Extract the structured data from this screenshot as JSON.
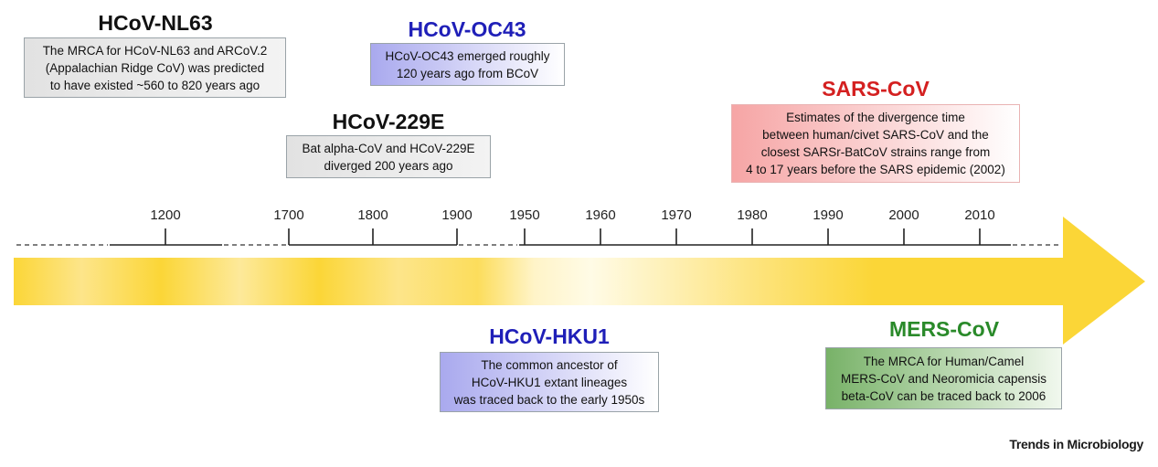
{
  "colors": {
    "black_title": "#111111",
    "blue_title": "#1f1fb8",
    "red_title": "#d42020",
    "green_title": "#2a8a2a",
    "arrow_yellow": "#fbd637"
  },
  "events": [
    {
      "key": "nl63",
      "title": "HCoV-NL63",
      "title_color": "#111111",
      "text": "The MRCA for HCoV-NL63 and ARCoV.2\n(Appalachian Ridge CoV) was predicted\nto have existed ~560 to 820 years ago"
    },
    {
      "key": "oc43",
      "title": "HCoV-OC43",
      "title_color": "#1f1fb8",
      "text": "HCoV-OC43 emerged roughly\n120 years ago from BCoV"
    },
    {
      "key": "e229",
      "title": "HCoV-229E",
      "title_color": "#111111",
      "text": "Bat alpha-CoV and HCoV-229E\ndiverged 200 years ago"
    },
    {
      "key": "sars",
      "title": "SARS-CoV",
      "title_color": "#d42020",
      "text": "Estimates of the divergence time\nbetween human/civet SARS-CoV and the\nclosest SARSr-BatCoV strains range from\n4 to 17 years before the SARS epidemic (2002)"
    },
    {
      "key": "hku1",
      "title": "HCoV-HKU1",
      "title_color": "#1f1fb8",
      "text": "The common ancestor of\nHCoV-HKU1 extant lineages\nwas traced back to the early 1950s"
    },
    {
      "key": "mers",
      "title": "MERS-CoV",
      "title_color": "#2a8a2a",
      "text": "The MRCA for Human/Camel\nMERS-CoV and Neoromicia capensis\nbeta-CoV can be traced back to 2006"
    }
  ],
  "timeline": {
    "ticks": [
      "1200",
      "1700",
      "1800",
      "1900",
      "1950",
      "1960",
      "1970",
      "1980",
      "1990",
      "2000",
      "2010"
    ]
  },
  "footer": {
    "brand": "Trends in Microbiology"
  }
}
